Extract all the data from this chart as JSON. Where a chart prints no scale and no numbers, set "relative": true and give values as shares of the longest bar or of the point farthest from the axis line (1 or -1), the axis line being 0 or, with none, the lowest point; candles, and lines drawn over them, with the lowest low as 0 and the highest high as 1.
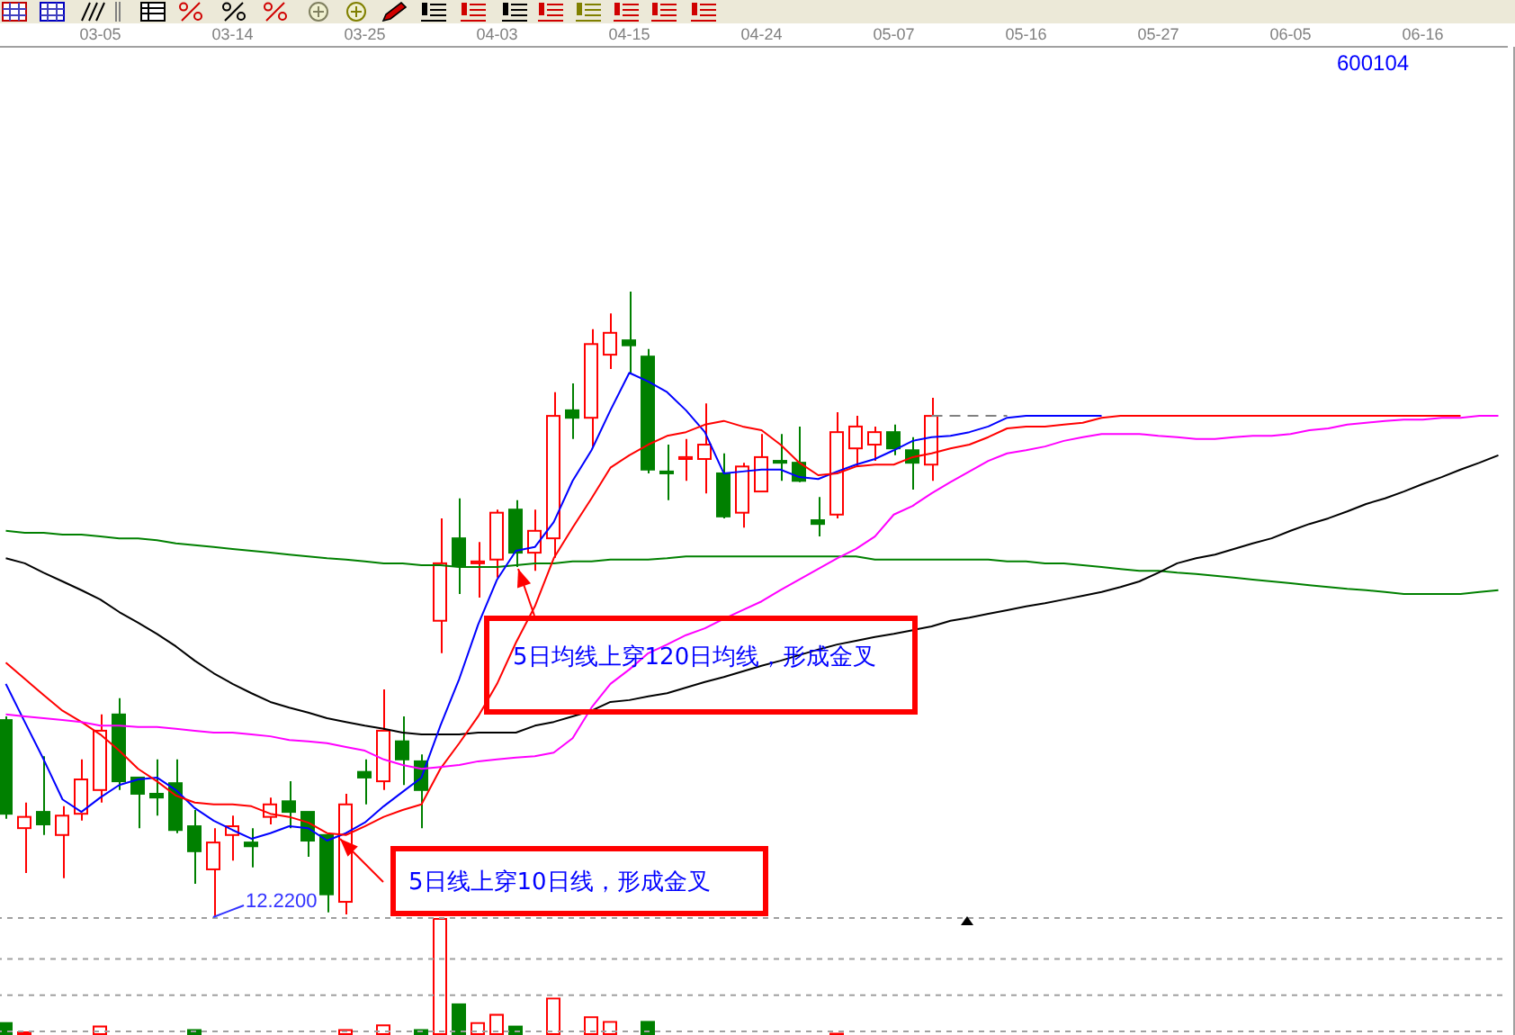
{
  "chart_data": [
    {
      "type": "candlestick",
      "title": "600104",
      "relative": true,
      "categories": [
        null,
        null,
        null,
        null,
        null,
        "03-05",
        null,
        null,
        null,
        null,
        null,
        null,
        "03-14",
        null,
        null,
        null,
        null,
        null,
        null,
        "03-25",
        null,
        null,
        null,
        null,
        null,
        null,
        "04-03",
        null,
        null,
        null,
        null,
        null,
        null,
        "04-15",
        null,
        null,
        null,
        null,
        null,
        null,
        "04-24",
        null,
        null,
        null,
        null,
        null,
        null,
        "05-07",
        null,
        null,
        null,
        null,
        null,
        null,
        "05-16",
        null,
        null,
        null,
        null,
        null,
        null,
        "05-27",
        null,
        null,
        null,
        null,
        null,
        null,
        "06-05",
        null,
        null,
        null,
        null,
        null,
        null,
        "06-16",
        null,
        null,
        null,
        null
      ],
      "ohlc": [
        [
          0.314,
          0.32,
          0.156,
          0.164
        ],
        [
          0.141,
          0.182,
          0.069,
          0.159
        ],
        [
          0.167,
          0.256,
          0.13,
          0.147
        ],
        [
          0.13,
          0.176,
          0.061,
          0.161
        ],
        [
          0.164,
          0.251,
          0.153,
          0.219
        ],
        [
          0.202,
          0.323,
          0.182,
          0.297
        ],
        [
          0.323,
          0.349,
          0.202,
          0.216
        ],
        [
          0.222,
          0.222,
          0.141,
          0.196
        ],
        [
          0.196,
          0.251,
          0.161,
          0.19
        ],
        [
          0.213,
          0.251,
          0.133,
          0.138
        ],
        [
          0.144,
          0.17,
          0.052,
          0.104
        ],
        [
          0.075,
          0.141,
          0,
          0.118
        ],
        [
          0.13,
          0.161,
          0.089,
          0.144
        ],
        [
          0.118,
          0.141,
          0.078,
          0.112
        ],
        [
          0.159,
          0.19,
          0.147,
          0.179
        ],
        [
          0.184,
          0.216,
          0.141,
          0.167
        ],
        [
          0.167,
          0.167,
          0.095,
          0.121
        ],
        [
          0.13,
          0.133,
          0.006,
          0.035
        ],
        [
          0.023,
          0.196,
          0.003,
          0.179
        ],
        [
          0.231,
          0.251,
          0.179,
          0.222
        ],
        [
          0.216,
          0.363,
          0.202,
          0.297
        ],
        [
          0.28,
          0.32,
          0.21,
          0.251
        ],
        [
          0.248,
          0.259,
          0.141,
          0.202
        ],
        [
          0.473,
          0.637,
          0.421,
          0.565
        ],
        [
          0.605,
          0.669,
          0.516,
          0.562
        ],
        [
          0.565,
          0.599,
          0.51,
          0.568
        ],
        [
          0.571,
          0.651,
          0.542,
          0.646
        ],
        [
          0.651,
          0.666,
          0.559,
          0.582
        ],
        [
          0.582,
          0.651,
          0.553,
          0.617
        ],
        [
          0.605,
          0.839,
          0.574,
          0.801
        ],
        [
          0.81,
          0.853,
          0.764,
          0.798
        ],
        [
          0.798,
          0.94,
          0.752,
          0.916
        ],
        [
          0.899,
          0.965,
          0.876,
          0.934
        ],
        [
          0.922,
          1,
          0.87,
          0.914
        ],
        [
          0.896,
          0.908,
          0.709,
          0.715
        ],
        [
          0.712,
          0.755,
          0.666,
          0.709
        ],
        [
          0.732,
          0.764,
          0.697,
          0.735
        ],
        [
          0.732,
          0.821,
          0.677,
          0.755
        ],
        [
          0.709,
          0.741,
          0.637,
          0.64
        ],
        [
          0.646,
          0.726,
          0.622,
          0.72
        ],
        [
          0.68,
          0.772,
          0.68,
          0.735
        ],
        [
          0.729,
          0.772,
          0.697,
          0.726
        ],
        [
          0.726,
          0.784,
          0.695,
          0.697
        ],
        [
          0.634,
          0.671,
          0.608,
          0.628
        ],
        [
          0.643,
          0.807,
          0.637,
          0.775
        ],
        [
          0.749,
          0.801,
          0.72,
          0.784
        ],
        [
          0.755,
          0.784,
          0.729,
          0.775
        ],
        [
          0.775,
          0.787,
          0.738,
          0.749
        ],
        [
          0.746,
          0.767,
          0.683,
          0.726
        ],
        [
          0.723,
          0.83,
          0.697,
          0.801
        ],
        null,
        null,
        null,
        null,
        null,
        null,
        null,
        null,
        null,
        null,
        null,
        null,
        null,
        null,
        null,
        null,
        null,
        null,
        null,
        null,
        null,
        null,
        null,
        null,
        null,
        null,
        null,
        null,
        null,
        null
      ],
      "colors": [
        "#008000",
        "#ff0000",
        "#008000",
        "#ff0000",
        "#ff0000",
        "#ff0000",
        "#008000",
        "#008000",
        "#008000",
        "#008000",
        "#008000",
        "#ff0000",
        "#ff0000",
        "#008000",
        "#ff0000",
        "#008000",
        "#008000",
        "#008000",
        "#ff0000",
        "#008000",
        "#ff0000",
        "#008000",
        "#008000",
        "#ff0000",
        "#008000",
        "#ff0000",
        "#ff0000",
        "#008000",
        "#ff0000",
        "#ff0000",
        "#008000",
        "#ff0000",
        "#ff0000",
        "#008000",
        "#008000",
        "#008000",
        "#ff0000",
        "#ff0000",
        "#008000",
        "#ff0000",
        "#ff0000",
        "#008000",
        "#008000",
        "#008000",
        "#ff0000",
        "#ff0000",
        "#ff0000",
        "#008000",
        "#008000",
        "#ff0000",
        null,
        null,
        null,
        null,
        null,
        null,
        null,
        null,
        null,
        null,
        null,
        null,
        null,
        null,
        null,
        null,
        null,
        null,
        null,
        null,
        null,
        null,
        null,
        null,
        null,
        null,
        null,
        null,
        null,
        null
      ],
      "series": [
        {
          "type": "line",
          "color": "#808080",
          "line_style": "dashed",
          "values": [
            null,
            null,
            null,
            null,
            null,
            null,
            null,
            null,
            null,
            null,
            null,
            null,
            null,
            null,
            null,
            null,
            null,
            null,
            null,
            null,
            null,
            null,
            null,
            null,
            null,
            null,
            null,
            null,
            null,
            null,
            null,
            null,
            null,
            null,
            null,
            null,
            null,
            null,
            null,
            null,
            null,
            null,
            null,
            null,
            null,
            null,
            null,
            null,
            null,
            0.801,
            0.801,
            0.801,
            0.801,
            0.801,
            null,
            null,
            null,
            null,
            null,
            null,
            null,
            null,
            null,
            null,
            null,
            null,
            null,
            null,
            null,
            null,
            null,
            null,
            null,
            null,
            null,
            null,
            null,
            null,
            null,
            null
          ]
        },
        {
          "type": "line",
          "color": "#008000",
          "values": [
            0.617,
            0.614,
            0.614,
            0.611,
            0.611,
            0.608,
            0.605,
            0.605,
            0.602,
            0.597,
            0.594,
            0.591,
            0.588,
            0.585,
            0.582,
            0.579,
            0.576,
            0.573,
            0.571,
            0.568,
            0.565,
            0.565,
            0.562,
            0.562,
            0.559,
            0.559,
            0.559,
            0.562,
            0.565,
            0.565,
            0.568,
            0.568,
            0.571,
            0.571,
            0.571,
            0.573,
            0.576,
            0.576,
            0.576,
            0.576,
            0.576,
            0.576,
            0.576,
            0.576,
            0.576,
            0.576,
            0.571,
            0.571,
            0.571,
            0.571,
            0.571,
            0.571,
            0.571,
            0.568,
            0.568,
            0.565,
            0.565,
            0.562,
            0.559,
            0.556,
            0.553,
            0.553,
            0.55,
            0.548,
            0.545,
            0.542,
            0.539,
            0.536,
            0.533,
            0.53,
            0.527,
            0.524,
            0.522,
            0.519,
            0.516,
            0.516,
            0.516,
            0.516,
            0.519,
            0.522
          ]
        },
        {
          "type": "line",
          "color": "#000000",
          "values": [
            0.573,
            0.565,
            0.55,
            0.536,
            0.522,
            0.507,
            0.487,
            0.47,
            0.452,
            0.432,
            0.409,
            0.389,
            0.372,
            0.357,
            0.343,
            0.334,
            0.326,
            0.317,
            0.311,
            0.305,
            0.3,
            0.294,
            0.291,
            0.291,
            0.291,
            0.294,
            0.294,
            0.294,
            0.305,
            0.311,
            0.32,
            0.329,
            0.343,
            0.346,
            0.352,
            0.357,
            0.366,
            0.375,
            0.383,
            0.392,
            0.401,
            0.409,
            0.418,
            0.427,
            0.435,
            0.441,
            0.447,
            0.452,
            0.458,
            0.464,
            0.473,
            0.478,
            0.484,
            0.49,
            0.496,
            0.501,
            0.507,
            0.513,
            0.519,
            0.527,
            0.536,
            0.55,
            0.565,
            0.573,
            0.579,
            0.588,
            0.597,
            0.605,
            0.617,
            0.628,
            0.637,
            0.648,
            0.66,
            0.669,
            0.68,
            0.692,
            0.703,
            0.715,
            0.726,
            0.738
          ]
        },
        {
          "type": "line",
          "color": "#0000ff",
          "values": [
            0.372,
            0.311,
            0.251,
            0.187,
            0.167,
            0.19,
            0.21,
            0.219,
            0.222,
            0.202,
            0.173,
            0.153,
            0.138,
            0.124,
            0.133,
            0.144,
            0.141,
            0.121,
            0.133,
            0.15,
            0.176,
            0.199,
            0.222,
            0.305,
            0.38,
            0.467,
            0.539,
            0.585,
            0.591,
            0.631,
            0.697,
            0.746,
            0.81,
            0.87,
            0.856,
            0.839,
            0.81,
            0.775,
            0.709,
            0.712,
            0.715,
            0.715,
            0.703,
            0.7,
            0.712,
            0.723,
            0.732,
            0.746,
            0.761,
            0.767,
            0.769,
            0.775,
            0.784,
            0.798,
            0.801,
            0.801,
            0.801,
            0.801,
            0.801,
            null,
            null,
            null,
            null,
            null,
            null,
            null,
            null,
            null,
            null,
            null,
            null,
            null,
            null,
            null,
            null,
            null,
            null,
            null,
            null,
            null
          ]
        },
        {
          "type": "line",
          "color": "#ff0000",
          "values": [
            0.406,
            0.38,
            0.354,
            0.329,
            0.311,
            0.291,
            0.265,
            0.236,
            0.216,
            0.193,
            0.182,
            0.179,
            0.179,
            0.176,
            0.164,
            0.159,
            0.15,
            0.133,
            0.13,
            0.144,
            0.159,
            0.17,
            0.179,
            0.236,
            0.277,
            0.32,
            0.372,
            0.438,
            0.496,
            0.573,
            0.622,
            0.669,
            0.718,
            0.738,
            0.755,
            0.769,
            0.775,
            0.787,
            0.793,
            0.784,
            0.778,
            0.755,
            0.726,
            0.706,
            0.709,
            0.72,
            0.723,
            0.723,
            0.735,
            0.741,
            0.749,
            0.755,
            0.767,
            0.781,
            0.784,
            0.784,
            0.787,
            0.79,
            0.798,
            0.801,
            0.801,
            0.801,
            0.801,
            0.801,
            0.801,
            0.801,
            0.801,
            0.801,
            0.801,
            0.801,
            0.801,
            0.801,
            0.801,
            0.801,
            0.801,
            0.801,
            0.801,
            0.801,
            null,
            null
          ]
        },
        {
          "type": "line",
          "color": "#ff00ff",
          "values": [
            0.323,
            0.32,
            0.317,
            0.314,
            0.311,
            0.305,
            0.305,
            0.303,
            0.303,
            0.3,
            0.297,
            0.294,
            0.294,
            0.291,
            0.288,
            0.282,
            0.28,
            0.277,
            0.271,
            0.265,
            0.251,
            0.242,
            0.236,
            0.239,
            0.242,
            0.248,
            0.251,
            0.254,
            0.256,
            0.262,
            0.285,
            0.334,
            0.372,
            0.395,
            0.421,
            0.435,
            0.45,
            0.461,
            0.476,
            0.49,
            0.504,
            0.522,
            0.539,
            0.556,
            0.573,
            0.588,
            0.608,
            0.643,
            0.657,
            0.677,
            0.695,
            0.712,
            0.729,
            0.741,
            0.746,
            0.752,
            0.761,
            0.767,
            0.772,
            0.772,
            0.772,
            0.769,
            0.767,
            0.764,
            0.764,
            0.767,
            0.769,
            0.769,
            0.772,
            0.778,
            0.781,
            0.787,
            0.79,
            0.793,
            0.795,
            0.795,
            0.798,
            0.798,
            0.801,
            0.801
          ]
        }
      ],
      "annotations": [
        "12.2200",
        "5日均线上穿120日均线，形成金叉",
        "5日线上穿10日线，形成金叉"
      ]
    },
    {
      "type": "bar",
      "relative": true,
      "tick_labels": false,
      "categories": [
        null,
        null,
        null,
        null,
        null,
        null,
        null,
        null,
        null,
        null,
        null,
        null,
        null,
        null,
        null,
        null,
        null,
        null,
        null,
        null,
        null,
        null,
        null,
        null,
        null,
        null,
        null,
        null,
        null,
        null,
        null,
        null,
        null,
        null,
        null,
        null,
        null,
        null,
        null,
        null,
        null,
        null,
        null,
        null,
        null,
        null,
        null,
        null,
        null,
        null,
        null,
        null,
        null,
        null,
        null,
        null,
        null,
        null,
        null,
        null,
        null,
        null,
        null,
        null,
        null,
        null,
        null,
        null,
        null,
        null,
        null,
        null,
        null,
        null,
        null,
        null,
        null,
        null,
        null,
        null
      ],
      "values": [
        0.11,
        0.03,
        null,
        null,
        null,
        0.08,
        null,
        null,
        null,
        null,
        0.05,
        null,
        null,
        null,
        null,
        null,
        null,
        null,
        0.05,
        null,
        0.09,
        null,
        0.05,
        1,
        0.27,
        0.11,
        0.18,
        0.08,
        null,
        0.32,
        null,
        0.16,
        0.12,
        null,
        0.12,
        null,
        null,
        null,
        null,
        null,
        null,
        null,
        null,
        null,
        0.02,
        null,
        null,
        null,
        null,
        null,
        null,
        null,
        null,
        null,
        null,
        null,
        null,
        null,
        null,
        null,
        null,
        null,
        null,
        null,
        null,
        null,
        null,
        null,
        null,
        null,
        null,
        null,
        null,
        null,
        null,
        null,
        null,
        null,
        null,
        null
      ],
      "colors": [
        "#008000",
        "#ff0000",
        null,
        null,
        null,
        "#ff0000",
        null,
        null,
        null,
        null,
        "#008000",
        null,
        null,
        null,
        null,
        null,
        null,
        null,
        "#ff0000",
        null,
        "#ff0000",
        null,
        "#008000",
        "#ff0000",
        "#008000",
        "#ff0000",
        "#ff0000",
        "#008000",
        null,
        "#ff0000",
        null,
        "#ff0000",
        "#ff0000",
        null,
        "#008000",
        null,
        null,
        null,
        null,
        null,
        null,
        null,
        null,
        null,
        "#ff0000",
        null,
        null,
        null,
        null,
        null,
        null,
        null,
        null,
        null,
        null,
        null,
        null,
        null,
        null,
        null,
        null,
        null,
        null,
        null,
        null,
        null,
        null,
        null,
        null,
        null,
        null,
        null,
        null,
        null,
        null,
        null,
        null,
        null,
        null,
        null
      ],
      "ref_lines": [
        {
          "axis": "y",
          "value": 1,
          "color": "#a0a0a0",
          "line_style": "dashed"
        },
        {
          "axis": "y",
          "value": 0.65,
          "color": "#a0a0a0",
          "line_style": "dashed"
        },
        {
          "axis": "y",
          "value": 0.34,
          "color": "#a0a0a0",
          "line_style": "dashed"
        },
        {
          "axis": "y",
          "value": 0.03,
          "color": "#a0a0a0",
          "line_style": "dashed"
        }
      ]
    }
  ]
}
